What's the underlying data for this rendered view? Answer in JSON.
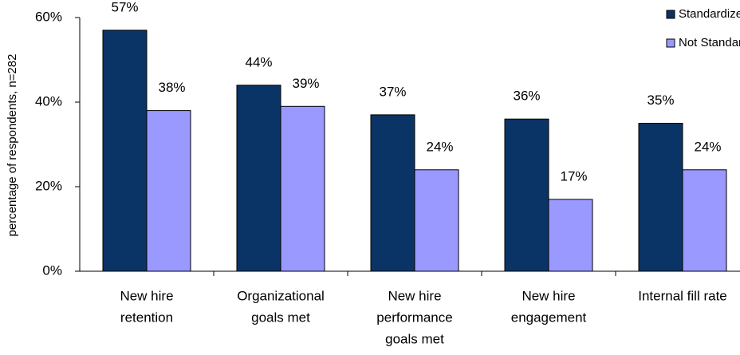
{
  "chart_data": {
    "type": "bar",
    "y_label": "percentage of respondents, n=282",
    "categories": [
      [
        "New hire",
        "retention"
      ],
      [
        "Organizational",
        "goals met"
      ],
      [
        "New hire",
        "performance",
        "goals met"
      ],
      [
        "New hire",
        "engagement"
      ],
      [
        "Internal fill rate"
      ]
    ],
    "series": [
      {
        "name": "Standardized",
        "color": "#0a3466",
        "values": [
          57,
          44,
          37,
          36,
          35
        ],
        "value_labels": [
          "57%",
          "44%",
          "37%",
          "36%",
          "35%"
        ]
      },
      {
        "name": "Not Standard",
        "color": "#9999ff",
        "values": [
          38,
          39,
          24,
          17,
          24
        ],
        "value_labels": [
          "38%",
          "39%",
          "24%",
          "17%",
          "24%"
        ]
      }
    ],
    "ylim": [
      0,
      60
    ],
    "yticks": [
      {
        "value": 0,
        "label": "0%"
      },
      {
        "value": 20,
        "label": "20%"
      },
      {
        "value": 40,
        "label": "40%"
      },
      {
        "value": 60,
        "label": "60%"
      }
    ],
    "grid": false,
    "legend": "top-right"
  }
}
